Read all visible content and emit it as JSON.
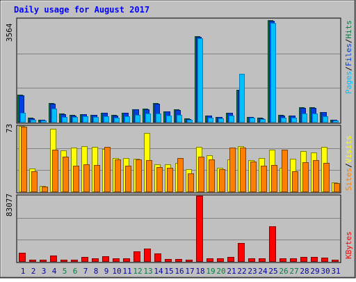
{
  "title": "Daily usage for August 2017",
  "colors": {
    "background": "#c0c0c0",
    "pages": "#00bfff",
    "pages_edge": "#0080c0",
    "files": "#0040e0",
    "files_edge": "#002080",
    "hits": "#008040",
    "hits_edge": "#004020",
    "visits": "#ffff00",
    "visits_edge": "#808000",
    "sites": "#ff8000",
    "sites_edge": "#804000",
    "kbytes": "#ff0000",
    "kbytes_edge": "#800000",
    "weekend_label": "#008040",
    "weekday_label": "#0000a0",
    "title_color": "#0000ff"
  },
  "chart_data": [
    {
      "type": "bar",
      "panel": "hits-files-pages",
      "y_max_label": "3564",
      "ylim": [
        0,
        3564
      ],
      "legend": [
        "Pages",
        "Files",
        "Hits"
      ],
      "legend_separator": "/",
      "categories": [
        "1",
        "2",
        "3",
        "4",
        "5",
        "6",
        "7",
        "8",
        "9",
        "10",
        "11",
        "12",
        "13",
        "14",
        "15",
        "16",
        "17",
        "18",
        "19",
        "20",
        "21",
        "22",
        "23",
        "24",
        "25",
        "26",
        "27",
        "28",
        "29",
        "30",
        "31"
      ],
      "weekend_days": [
        "5",
        "6",
        "12",
        "13",
        "19",
        "20",
        "26",
        "27"
      ],
      "series": [
        {
          "name": "Hits",
          "values": [
            965,
            160,
            95,
            670,
            300,
            260,
            290,
            265,
            340,
            255,
            340,
            460,
            470,
            660,
            390,
            445,
            135,
            2960,
            250,
            190,
            335,
            1130,
            195,
            160,
            3520,
            260,
            250,
            520,
            520,
            370,
            95
          ]
        },
        {
          "name": "Files",
          "values": [
            940,
            155,
            90,
            650,
            290,
            250,
            280,
            255,
            330,
            245,
            330,
            450,
            460,
            645,
            380,
            430,
            130,
            2940,
            240,
            180,
            325,
            1110,
            185,
            150,
            3500,
            250,
            240,
            510,
            505,
            360,
            90
          ]
        },
        {
          "name": "Pages",
          "values": [
            340,
            95,
            60,
            490,
            200,
            185,
            210,
            195,
            225,
            170,
            215,
            260,
            310,
            300,
            230,
            270,
            95,
            2890,
            170,
            140,
            230,
            1670,
            160,
            110,
            3420,
            175,
            165,
            320,
            310,
            225,
            65
          ]
        }
      ]
    },
    {
      "type": "bar",
      "panel": "visits-sites",
      "y_max_label": "73",
      "ylim": [
        0,
        73
      ],
      "legend": [
        "Sites",
        "Visits"
      ],
      "legend_separator": "/",
      "categories": [
        "1",
        "2",
        "3",
        "4",
        "5",
        "6",
        "7",
        "8",
        "9",
        "10",
        "11",
        "12",
        "13",
        "14",
        "15",
        "16",
        "17",
        "18",
        "19",
        "20",
        "21",
        "22",
        "23",
        "24",
        "25",
        "26",
        "27",
        "28",
        "29",
        "30",
        "31"
      ],
      "series": [
        {
          "name": "Visits",
          "values": [
            73,
            26,
            7,
            70,
            46,
            49,
            51,
            50,
            48,
            38,
            38,
            37,
            65,
            31,
            31,
            32,
            25,
            50,
            41,
            27,
            36,
            51,
            35,
            38,
            47,
            27,
            37,
            45,
            44,
            50,
            11
          ]
        },
        {
          "name": "Sites",
          "values": [
            72,
            23,
            6,
            47,
            39,
            29,
            31,
            30,
            50,
            36,
            29,
            36,
            35,
            28,
            27,
            38,
            21,
            39,
            36,
            25,
            49,
            49,
            34,
            29,
            30,
            47,
            23,
            33,
            35,
            32,
            10
          ]
        }
      ]
    },
    {
      "type": "bar",
      "panel": "kbytes",
      "y_max_label": "83077",
      "ylim": [
        0,
        83077
      ],
      "legend": [
        "KBytes"
      ],
      "categories": [
        "1",
        "2",
        "3",
        "4",
        "5",
        "6",
        "7",
        "8",
        "9",
        "10",
        "11",
        "12",
        "13",
        "14",
        "15",
        "16",
        "17",
        "18",
        "19",
        "20",
        "21",
        "22",
        "23",
        "24",
        "25",
        "26",
        "27",
        "28",
        "29",
        "30",
        "31"
      ],
      "series": [
        {
          "name": "KBytes",
          "values": [
            11500,
            2700,
            2700,
            8200,
            2700,
            2700,
            6300,
            4500,
            6700,
            4500,
            4500,
            13000,
            16500,
            10500,
            3600,
            3600,
            2900,
            83077,
            4500,
            4500,
            6300,
            23900,
            4500,
            4500,
            45000,
            4500,
            4500,
            6300,
            6300,
            5000,
            2900
          ]
        }
      ]
    }
  ]
}
